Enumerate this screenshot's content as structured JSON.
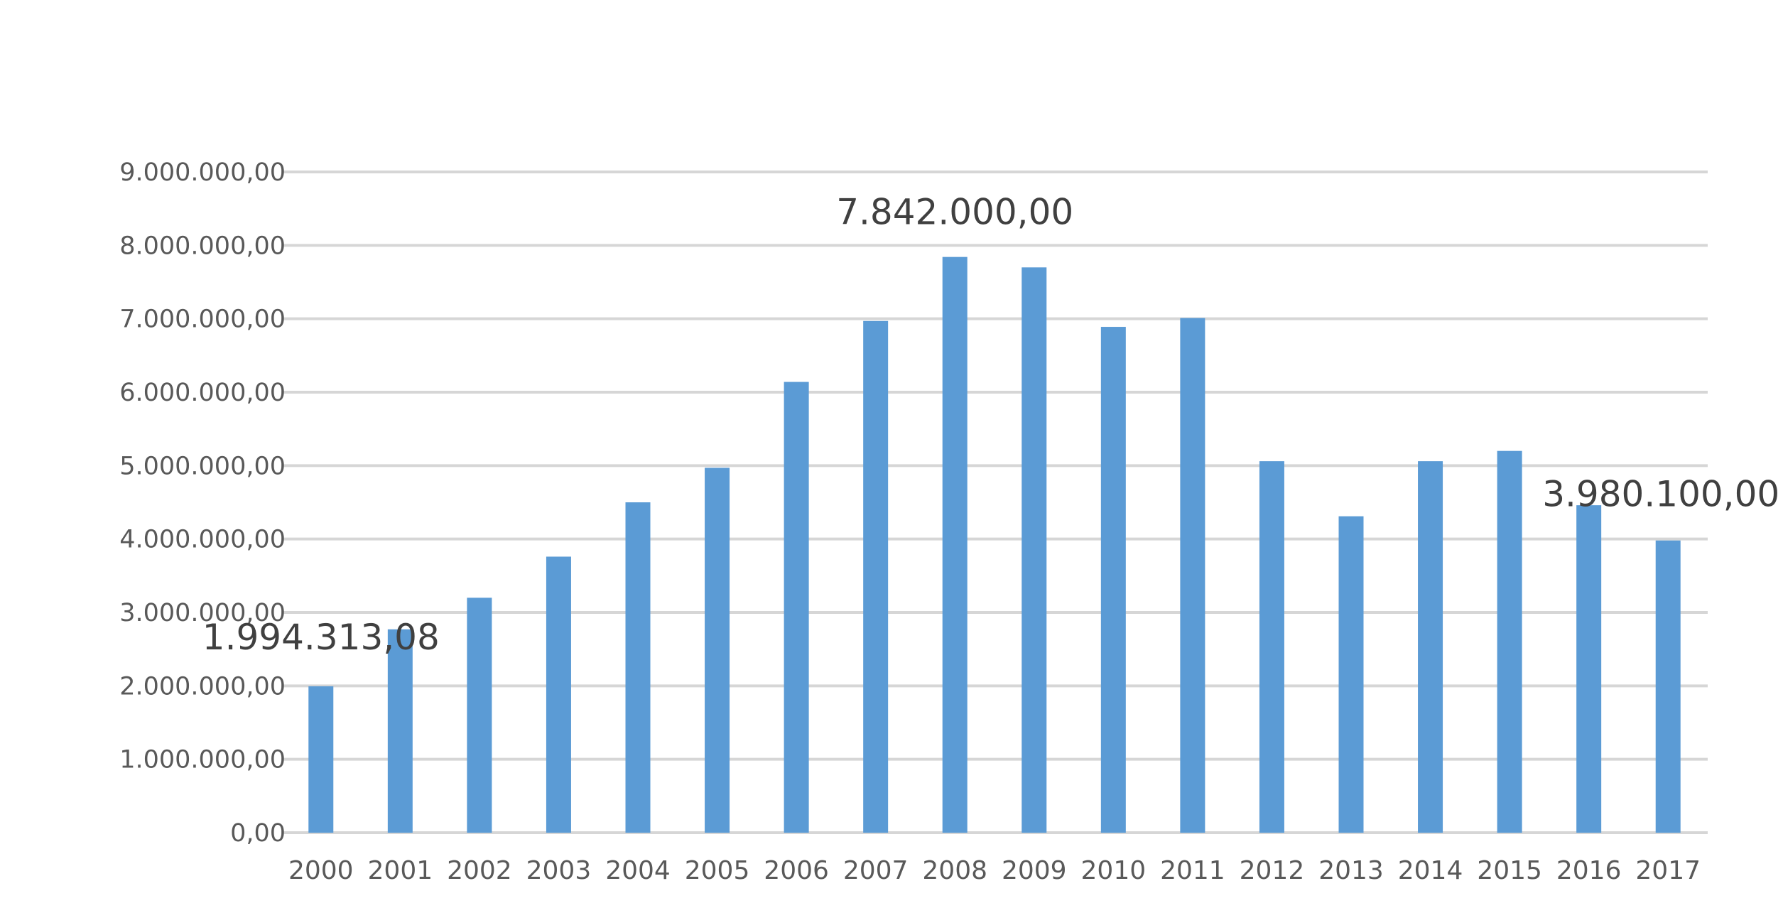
{
  "chart_data": {
    "type": "bar",
    "title": "",
    "xlabel": "",
    "ylabel": "",
    "categories": [
      "2000",
      "2001",
      "2002",
      "2003",
      "2004",
      "2005",
      "2006",
      "2007",
      "2008",
      "2009",
      "2010",
      "2011",
      "2012",
      "2013",
      "2014",
      "2015",
      "2016",
      "2017"
    ],
    "values": [
      1994313.08,
      2770000,
      3200000,
      3760000,
      4500000,
      4970000,
      6140000,
      6970000,
      7842000,
      7700000,
      6890000,
      7010000,
      5060000,
      4310000,
      5060000,
      5200000,
      4460000,
      3980100
    ],
    "ylim": [
      0,
      9000000
    ],
    "yticks": [
      0,
      1000000,
      2000000,
      3000000,
      4000000,
      5000000,
      6000000,
      7000000,
      8000000,
      9000000
    ],
    "ytick_labels": [
      "0,00",
      "1.000.000,00",
      "2.000.000,00",
      "3.000.000,00",
      "4.000.000,00",
      "5.000.000,00",
      "6.000.000,00",
      "7.000.000,00",
      "8.000.000,00",
      "9.000.000,00"
    ],
    "grid": true,
    "bar_color": "#5b9bd5",
    "gridline_color": "#d6d6d6",
    "data_labels": [
      {
        "category": "2000",
        "text": "1.994.313,08"
      },
      {
        "category": "2008",
        "text": "7.842.000,00"
      },
      {
        "category": "2017",
        "text": "3.980.100,00"
      }
    ]
  }
}
